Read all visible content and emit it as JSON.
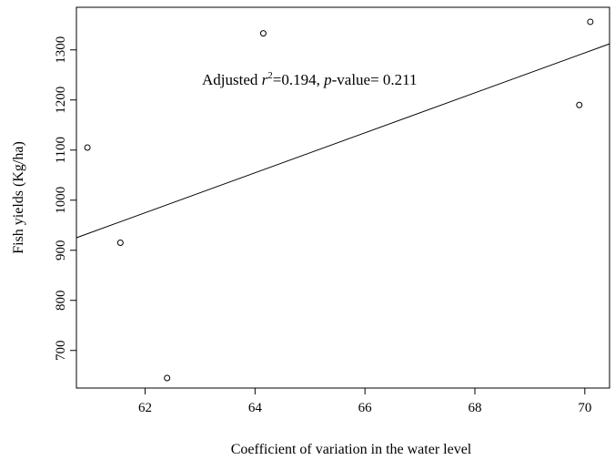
{
  "chart_data": {
    "type": "scatter",
    "title": "",
    "xlabel": "Coefficient of variation in the water level",
    "ylabel": "Fish yields (Kg/ha)",
    "xlim": [
      60.75,
      70.45
    ],
    "ylim": [
      625,
      1385
    ],
    "x_ticks": [
      62,
      64,
      66,
      68,
      70
    ],
    "y_ticks": [
      700,
      800,
      900,
      1000,
      1100,
      1200,
      1300
    ],
    "points": [
      {
        "x": 60.95,
        "y": 1105
      },
      {
        "x": 61.55,
        "y": 915
      },
      {
        "x": 62.4,
        "y": 645
      },
      {
        "x": 64.15,
        "y": 1333
      },
      {
        "x": 69.9,
        "y": 1190
      },
      {
        "x": 70.1,
        "y": 1356
      }
    ],
    "regression_line": {
      "x": [
        60.75,
        70.45
      ],
      "y": [
        925,
        1312
      ]
    },
    "annotation": {
      "prefix": "Adjusted ",
      "r_symbol": "r",
      "r_sup": "2",
      "r_value": "=0.194, ",
      "p_symbol": "p",
      "p_value": "-value= 0.211"
    },
    "grid": false,
    "legend": "none"
  }
}
